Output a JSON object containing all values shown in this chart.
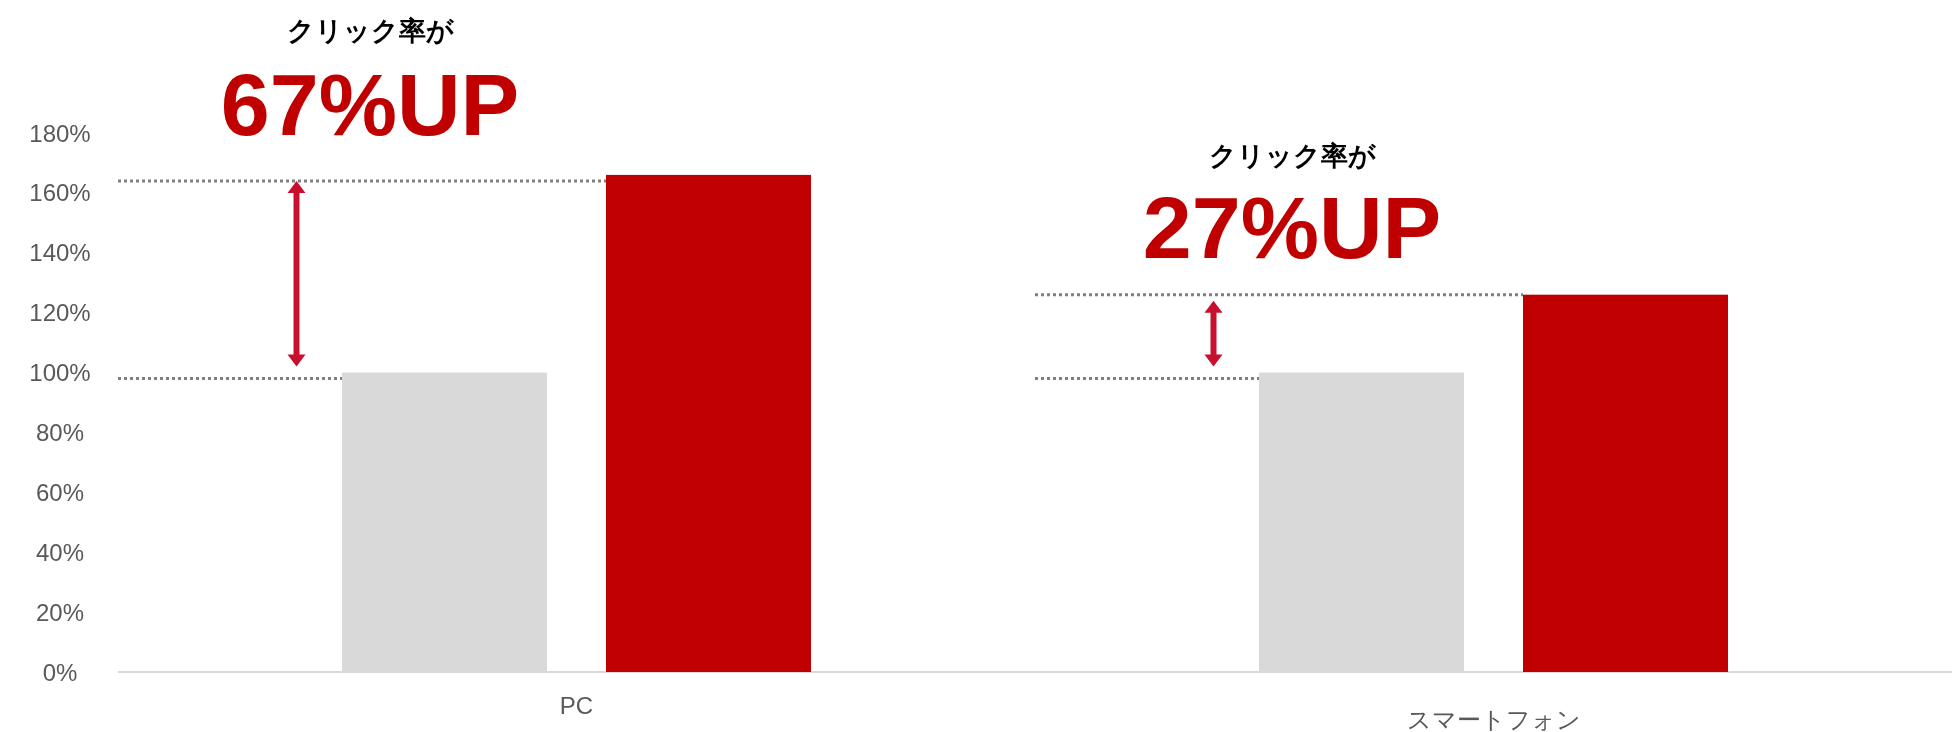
{
  "chart_data": {
    "type": "bar",
    "categories": [
      "PC",
      "スマートフォン"
    ],
    "series": [
      {
        "color": "#d9d9d9",
        "values": [
          100,
          100
        ]
      },
      {
        "color": "#c00000",
        "values": [
          166,
          126
        ]
      }
    ],
    "ylim": [
      0,
      180
    ],
    "yticks": [
      {
        "value": 0,
        "label": "0%"
      },
      {
        "value": 20,
        "label": "20%"
      },
      {
        "value": 40,
        "label": "40%"
      },
      {
        "value": 60,
        "label": "60%"
      },
      {
        "value": 80,
        "label": "80%"
      },
      {
        "value": 100,
        "label": "100%"
      },
      {
        "value": 120,
        "label": "120%"
      },
      {
        "value": 140,
        "label": "140%"
      },
      {
        "value": 160,
        "label": "160%"
      },
      {
        "value": 180,
        "label": "180%"
      }
    ],
    "grid": false,
    "ref_lines": [
      {
        "axis": "y",
        "value": 164,
        "color": "#808080",
        "line_style": "dotted"
      },
      {
        "axis": "y",
        "value": 126,
        "color": "#808080",
        "line_style": "dotted"
      },
      {
        "axis": "y",
        "value": 98,
        "color": "#808080",
        "line_style": "dotted"
      }
    ],
    "annotations": [
      "クリック率が",
      "67%UP",
      "クリック率が",
      "27%UP"
    ]
  }
}
